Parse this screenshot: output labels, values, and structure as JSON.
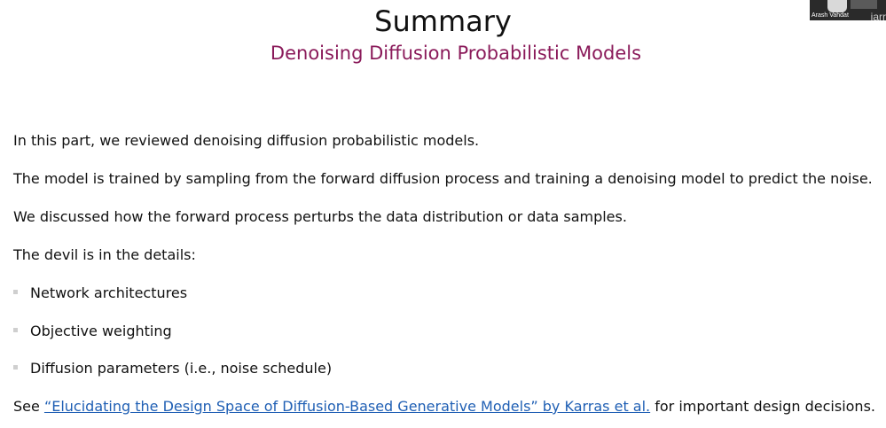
{
  "slide": {
    "title": "Summary",
    "subtitle": "Denoising Diffusion Probabilistic Models",
    "paragraphs": [
      "In this part, we reviewed denoising diffusion probabilistic models.",
      "The model is trained by sampling from the forward diffusion process and training a denoising model to predict the noise.",
      "We discussed how the forward process perturbs the data distribution or data samples.",
      "The devil is in the details:"
    ],
    "bullets": [
      "Network architectures",
      "Objective weighting",
      "Diffusion parameters (i.e., noise schedule)"
    ],
    "reference": {
      "prefix": "See ",
      "link_text": "“Elucidating the Design Space of Diffusion-Based Generative Models” by Karras et al.",
      "suffix": " for important design decisions."
    }
  },
  "webcam": {
    "participant_name": "Arash Vahdat",
    "overlay_text": "iarr"
  },
  "colors": {
    "subtitle": "#8a1a5a",
    "link": "#1f5fb4",
    "bullet": "#cfcfcf"
  }
}
